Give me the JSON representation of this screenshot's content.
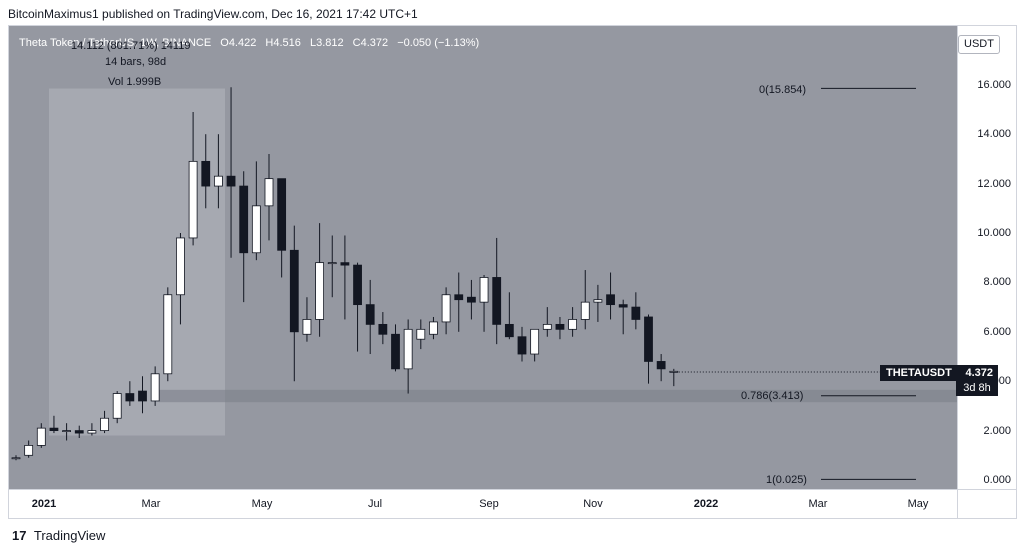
{
  "header": {
    "attribution": "BitcoinMaximus1 published on TradingView.com, Dec 16, 2021 17:42 UTC+1"
  },
  "legend": {
    "symbol": "Theta Token / TetherUS, 1W, BINANCE",
    "o_label": "O",
    "o": "4.422",
    "h_label": "H",
    "h": "4.516",
    "l_label": "L",
    "l": "3.812",
    "c_label": "C",
    "c": "4.372",
    "change": "−0.050 (−1.13%)"
  },
  "measure": {
    "line1": "14.112 (801.71%) 14119",
    "line2": "14 bars, 98d",
    "line3": "Vol 1.999B"
  },
  "price_axis": {
    "currency": "USDT",
    "ticks": [
      "16.000",
      "14.000",
      "12.000",
      "10.000",
      "8.000",
      "6.000",
      "4.000",
      "2.000",
      "0.000"
    ]
  },
  "time_axis": {
    "labels": [
      "2021",
      "Mar",
      "May",
      "Jul",
      "Sep",
      "Nov",
      "2022",
      "Mar",
      "May"
    ]
  },
  "last_price": {
    "symbol": "THETAUSDT",
    "value": "4.372",
    "countdown": "3d 8h"
  },
  "fib_labels": {
    "top": "0(15.854)",
    "mid": "0.786(3.413)",
    "bottom": "1(0.025)"
  },
  "footer": {
    "brand": "TradingView",
    "logo": "17"
  },
  "colors": {
    "plot_bg": "#9598a1",
    "bull": "#ffffff",
    "bear": "#131722",
    "zone": "#a9acb4",
    "band": "#7d808a"
  },
  "chart_data": {
    "type": "candlestick",
    "title": "Theta Token / TetherUS, 1W, BINANCE",
    "interval": "1W",
    "x_start": "2020-12-28",
    "ylim": [
      0,
      17
    ],
    "y_ticks": [
      0,
      2,
      4,
      6,
      8,
      10,
      12,
      14,
      16
    ],
    "grid": false,
    "ohlc": [
      [
        0.9,
        1.0,
        0.8,
        0.9
      ],
      [
        1.0,
        1.6,
        0.9,
        1.4
      ],
      [
        1.4,
        2.3,
        1.3,
        2.1
      ],
      [
        2.1,
        2.6,
        1.9,
        2.0
      ],
      [
        2.0,
        2.3,
        1.6,
        2.0
      ],
      [
        2.0,
        2.2,
        1.7,
        1.9
      ],
      [
        1.9,
        2.3,
        1.8,
        2.0
      ],
      [
        2.0,
        2.8,
        1.9,
        2.5
      ],
      [
        2.5,
        3.6,
        2.3,
        3.5
      ],
      [
        3.5,
        4.0,
        3.0,
        3.2
      ],
      [
        3.6,
        4.2,
        2.7,
        3.2
      ],
      [
        3.2,
        4.6,
        3.0,
        4.3
      ],
      [
        4.3,
        7.8,
        4.0,
        7.5
      ],
      [
        7.5,
        10.0,
        6.3,
        9.8
      ],
      [
        9.8,
        14.9,
        9.5,
        12.9
      ],
      [
        12.9,
        14.0,
        11.0,
        11.9
      ],
      [
        11.9,
        14.0,
        11.0,
        12.3
      ],
      [
        12.3,
        15.9,
        9.0,
        11.9
      ],
      [
        11.9,
        12.5,
        7.2,
        9.2
      ],
      [
        9.2,
        12.9,
        8.9,
        11.1
      ],
      [
        11.1,
        13.2,
        9.7,
        12.2
      ],
      [
        12.2,
        12.2,
        8.2,
        9.3
      ],
      [
        9.3,
        10.3,
        4.0,
        6.0
      ],
      [
        5.9,
        7.4,
        5.6,
        6.5
      ],
      [
        6.5,
        10.4,
        5.8,
        8.8
      ],
      [
        8.8,
        9.9,
        7.4,
        8.8
      ],
      [
        8.8,
        9.9,
        6.5,
        8.7
      ],
      [
        8.7,
        8.8,
        5.2,
        7.1
      ],
      [
        7.1,
        8.1,
        5.1,
        6.3
      ],
      [
        6.3,
        6.8,
        5.5,
        5.9
      ],
      [
        5.9,
        6.3,
        4.4,
        4.5
      ],
      [
        4.5,
        6.5,
        3.5,
        6.1
      ],
      [
        5.7,
        6.5,
        5.3,
        6.1
      ],
      [
        5.9,
        6.6,
        5.7,
        6.4
      ],
      [
        6.4,
        7.8,
        5.9,
        7.5
      ],
      [
        7.5,
        8.4,
        6.0,
        7.3
      ],
      [
        7.4,
        8.1,
        6.5,
        7.2
      ],
      [
        7.2,
        8.3,
        6.0,
        8.2
      ],
      [
        8.2,
        9.8,
        5.5,
        6.3
      ],
      [
        6.3,
        7.6,
        5.7,
        5.8
      ],
      [
        5.8,
        6.2,
        4.8,
        5.1
      ],
      [
        5.1,
        6.1,
        4.8,
        6.1
      ],
      [
        6.1,
        7.0,
        5.8,
        6.3
      ],
      [
        6.3,
        6.6,
        5.7,
        6.1
      ],
      [
        6.1,
        7.0,
        5.8,
        6.5
      ],
      [
        6.5,
        8.5,
        6.1,
        7.2
      ],
      [
        7.2,
        7.9,
        6.4,
        7.3
      ],
      [
        7.5,
        8.4,
        6.5,
        7.1
      ],
      [
        7.1,
        7.3,
        5.9,
        7.0
      ],
      [
        7.0,
        7.6,
        6.1,
        6.5
      ],
      [
        6.6,
        6.7,
        3.9,
        4.8
      ],
      [
        4.8,
        5.1,
        4.0,
        4.5
      ],
      [
        4.4,
        4.5,
        3.8,
        4.4
      ]
    ],
    "fib_levels": [
      {
        "ratio": "0",
        "price": 15.854
      },
      {
        "ratio": "0.786",
        "price": 3.413
      },
      {
        "ratio": "1",
        "price": 0.025
      }
    ]
  }
}
